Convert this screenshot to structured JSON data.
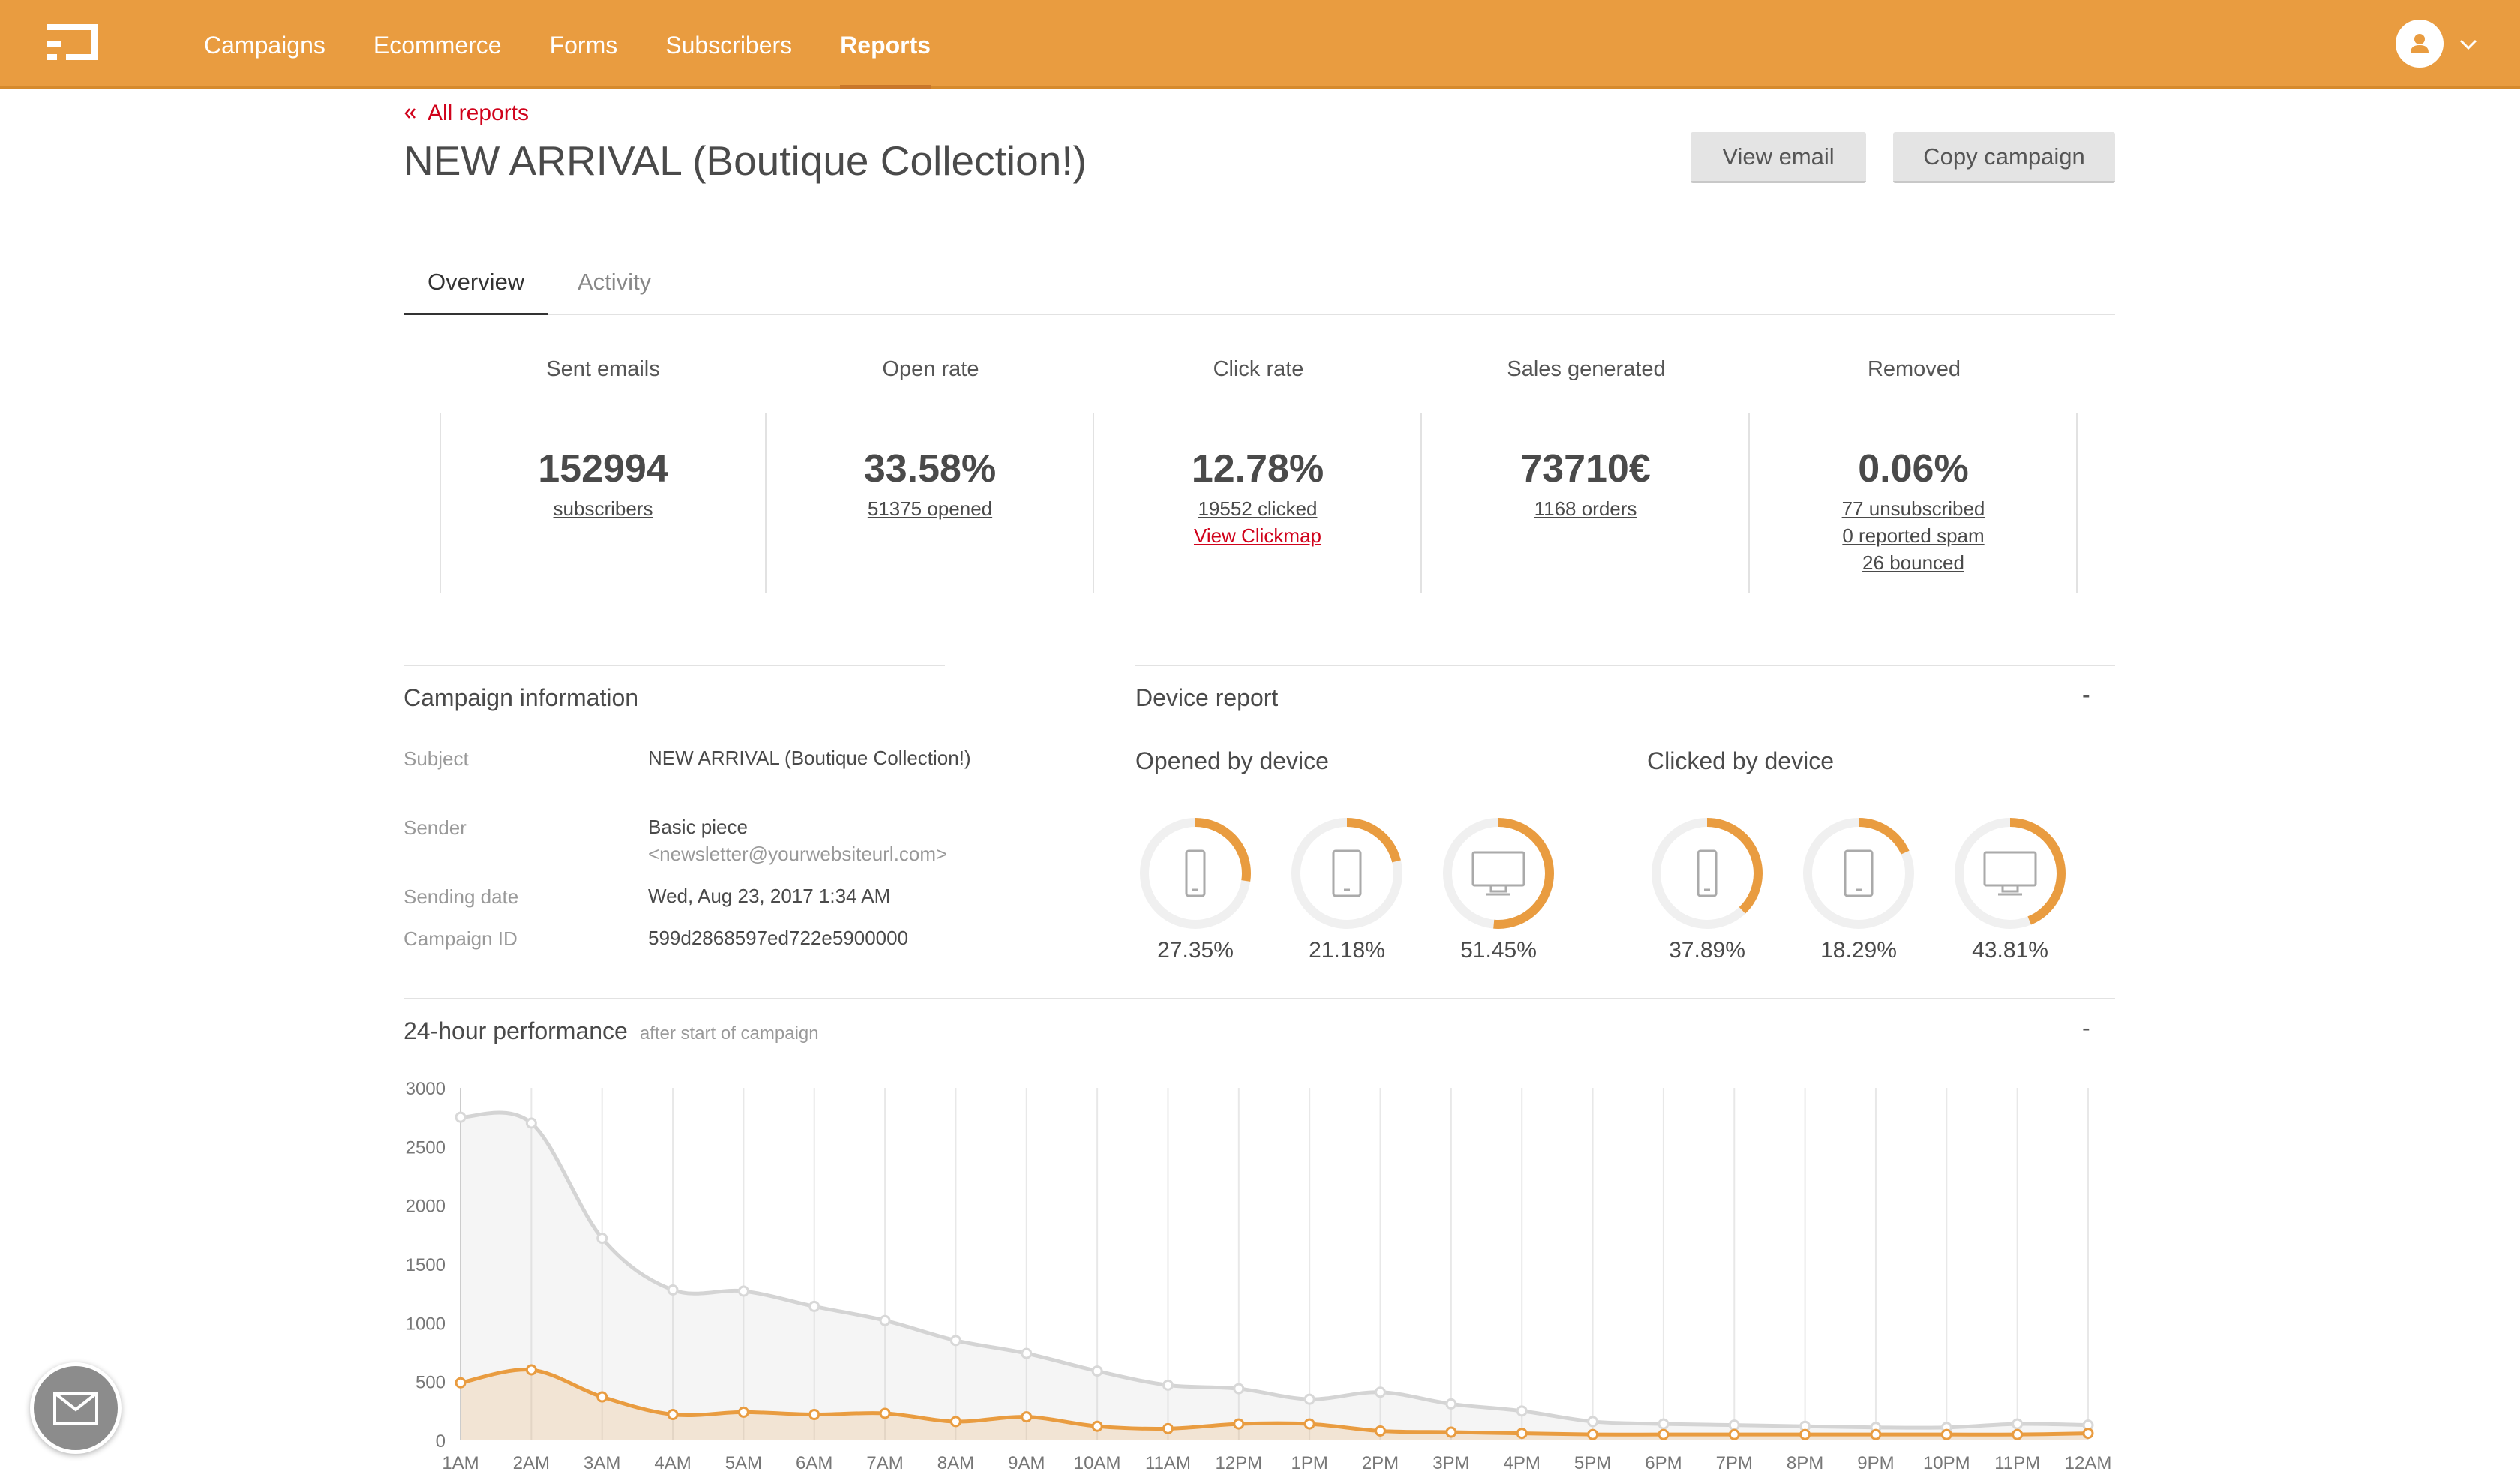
{
  "nav": {
    "items": [
      {
        "label": "Campaigns"
      },
      {
        "label": "Ecommerce"
      },
      {
        "label": "Forms"
      },
      {
        "label": "Subscribers"
      },
      {
        "label": "Reports",
        "active": true
      }
    ]
  },
  "header": {
    "back_label": "All reports",
    "title": "NEW ARRIVAL (Boutique Collection!)",
    "view_email": "View email",
    "copy_campaign": "Copy campaign"
  },
  "tabs": [
    {
      "label": "Overview",
      "active": true
    },
    {
      "label": "Activity",
      "active": false
    }
  ],
  "stats": [
    {
      "label": "Sent emails",
      "value": "152994",
      "links": [
        "subscribers"
      ]
    },
    {
      "label": "Open rate",
      "value": "33.58%",
      "links": [
        "51375 opened"
      ]
    },
    {
      "label": "Click rate",
      "value": "12.78%",
      "links": [
        "19552 clicked"
      ],
      "extra_link": "View Clickmap"
    },
    {
      "label": "Sales generated",
      "value": "73710€",
      "links": [
        "1168 orders"
      ]
    },
    {
      "label": "Removed",
      "value": "0.06%",
      "links": [
        "77 unsubscribed",
        "0 reported spam",
        "26 bounced"
      ]
    }
  ],
  "campaign_info": {
    "title": "Campaign information",
    "rows": [
      {
        "label": "Subject",
        "value": "NEW ARRIVAL (Boutique Collection!)"
      },
      {
        "label": "Sender",
        "value": "Basic piece",
        "sub": "<newsletter@yourwebsiteurl.com>"
      },
      {
        "label": "Sending date",
        "value": "Wed, Aug 23, 2017 1:34 AM"
      },
      {
        "label": "Campaign ID",
        "value": "599d2868597ed722e5900000"
      }
    ]
  },
  "device_report": {
    "title": "Device report",
    "collapse": "-",
    "opened": {
      "title": "Opened by device",
      "items": [
        {
          "device": "mobile-icon",
          "pct": "27.35%",
          "fraction": 0.2735
        },
        {
          "device": "tablet-icon",
          "pct": "21.18%",
          "fraction": 0.2118
        },
        {
          "device": "desktop-icon",
          "pct": "51.45%",
          "fraction": 0.5145
        }
      ]
    },
    "clicked": {
      "title": "Clicked by device",
      "items": [
        {
          "device": "mobile-icon",
          "pct": "37.89%",
          "fraction": 0.3789
        },
        {
          "device": "tablet-icon",
          "pct": "18.29%",
          "fraction": 0.1829
        },
        {
          "device": "desktop-icon",
          "pct": "43.81%",
          "fraction": 0.4381
        }
      ]
    }
  },
  "performance": {
    "title": "24-hour performance",
    "subtitle": "after start of campaign",
    "collapse": "-"
  },
  "colors": {
    "brand": "#e99c40",
    "link_red": "#d0021b",
    "opens_series": "#d4d4d4",
    "clicks_series": "#e99c40"
  },
  "chart_data": {
    "type": "area",
    "x": [
      "1AM",
      "2AM",
      "3AM",
      "4AM",
      "5AM",
      "6AM",
      "7AM",
      "8AM",
      "9AM",
      "10AM",
      "11AM",
      "12PM",
      "1PM",
      "2PM",
      "3PM",
      "4PM",
      "5PM",
      "6PM",
      "7PM",
      "8PM",
      "9PM",
      "10PM",
      "11PM",
      "12AM"
    ],
    "series": [
      {
        "values": [
          2750,
          2700,
          1720,
          1280,
          1270,
          1140,
          1020,
          850,
          740,
          590,
          470,
          440,
          350,
          410,
          310,
          250,
          160,
          140,
          130,
          120,
          110,
          110,
          140,
          130
        ]
      },
      {
        "values": [
          490,
          600,
          370,
          220,
          240,
          220,
          230,
          160,
          200,
          120,
          100,
          140,
          140,
          80,
          70,
          60,
          50,
          50,
          50,
          50,
          50,
          50,
          50,
          60
        ]
      }
    ],
    "yticks": [
      0,
      500,
      1000,
      1500,
      2000,
      2500,
      3000
    ],
    "ylim": [
      0,
      3000
    ],
    "grid": true
  }
}
